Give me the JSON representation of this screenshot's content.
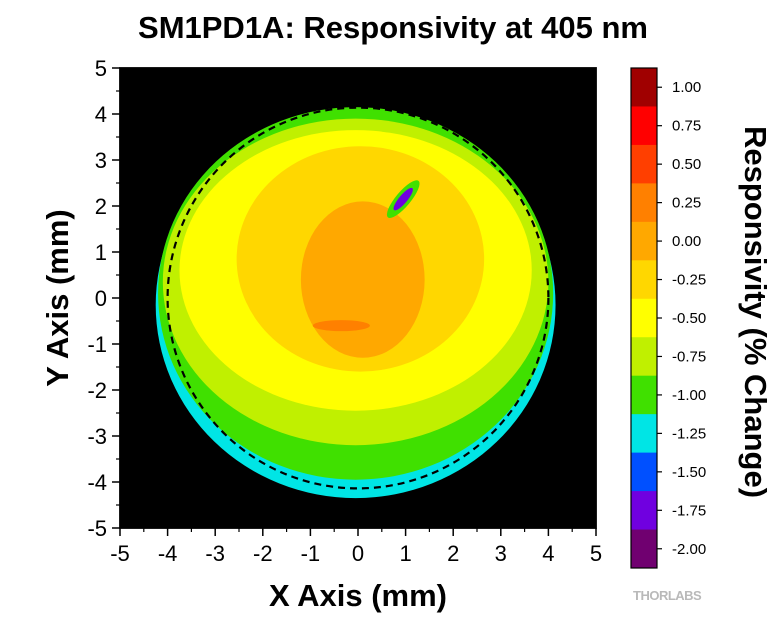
{
  "chart_data": {
    "type": "heatmap",
    "title": "SM1PD1A: Responsivity at 405 nm",
    "xlabel": "X Axis (mm)",
    "ylabel": "Y Axis (mm)",
    "colorbar_label": "Responsivity (% Change)",
    "xlim": [
      -5,
      5
    ],
    "ylim": [
      -5,
      5
    ],
    "x_ticks": [
      "-5",
      "-4",
      "-3",
      "-2",
      "-1",
      "0",
      "1",
      "2",
      "3",
      "4",
      "5"
    ],
    "y_ticks": [
      "5",
      "4",
      "3",
      "2",
      "1",
      "0",
      "-1",
      "-2",
      "-3",
      "-4",
      "-5"
    ],
    "background_color": "#000000",
    "colorbar": {
      "range": [
        -2.125,
        1.125
      ],
      "ticks": [
        "1.00",
        "0.75",
        "0.50",
        "0.25",
        "0.00",
        "-0.25",
        "-0.50",
        "-0.75",
        "-1.00",
        "-1.25",
        "-1.50",
        "-1.75",
        "-2.00"
      ],
      "colors": [
        "#a00000",
        "#ff0000",
        "#ff3f00",
        "#ff8000",
        "#ffa800",
        "#ffd700",
        "#ffff00",
        "#c0f000",
        "#40e000",
        "#00e5e5",
        "#0050ff",
        "#7000e0",
        "#700070"
      ]
    },
    "dashed_circle": {
      "center": [
        0,
        0
      ],
      "radius_mm": 4
    },
    "regions": [
      {
        "shape": "ellipse",
        "center": [
          -0.05,
          -0.15
        ],
        "r": [
          4.2,
          4.2
        ],
        "value": -1.25
      },
      {
        "shape": "ellipse",
        "center": [
          -0.05,
          0.1
        ],
        "r": [
          4.15,
          4.05
        ],
        "value": -1.0
      },
      {
        "shape": "ellipse",
        "center": [
          -0.05,
          0.35
        ],
        "r": [
          4.05,
          3.55
        ],
        "value": -0.75
      },
      {
        "shape": "ellipse",
        "center": [
          -0.05,
          0.6
        ],
        "r": [
          3.7,
          3.05
        ],
        "value": -0.5
      },
      {
        "shape": "ellipse",
        "center": [
          0.05,
          0.85
        ],
        "r": [
          2.6,
          2.45
        ],
        "value": -0.25
      },
      {
        "shape": "ellipse",
        "center": [
          0.1,
          0.4
        ],
        "r": [
          1.3,
          1.7
        ],
        "value": 0.0
      },
      {
        "shape": "ellipse",
        "center": [
          -0.35,
          -0.6
        ],
        "r": [
          0.6,
          0.12
        ],
        "value": 0.25
      },
      {
        "shape": "ellipse",
        "center": [
          0.95,
          2.15
        ],
        "r": [
          0.5,
          0.16
        ],
        "value": -1.0
      },
      {
        "shape": "ellipse",
        "center": [
          0.95,
          2.15
        ],
        "r": [
          0.3,
          0.09
        ],
        "value": -1.75
      }
    ],
    "brand_text": "THORLABS"
  }
}
